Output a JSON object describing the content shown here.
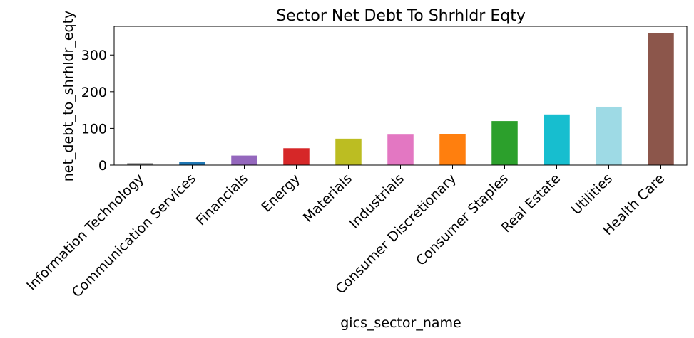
{
  "chart_data": {
    "type": "bar",
    "title": "Sector Net Debt To Shrhldr Eqty",
    "x_label": "gics_sector_name",
    "y_label": "net_debt_to_shrhldr_eqty",
    "categories": [
      "Information Technology",
      "Communication Services",
      "Financials",
      "Energy",
      "Materials",
      "Industrials",
      "Consumer Discretionary",
      "Consumer Staples",
      "Real Estate",
      "Utilities",
      "Health Care"
    ],
    "values": [
      5,
      9,
      26,
      46,
      72,
      83,
      85,
      120,
      138,
      159,
      359
    ],
    "colors": [
      "#7f7f7f",
      "#1f77b4",
      "#9467bd",
      "#d62728",
      "#bcbd22",
      "#e377c2",
      "#ff7f0e",
      "#2ca02c",
      "#17becf",
      "#9edae5",
      "#8c564b"
    ],
    "ylim": [
      0,
      378
    ],
    "yticks": [
      0,
      100,
      200,
      300
    ]
  }
}
